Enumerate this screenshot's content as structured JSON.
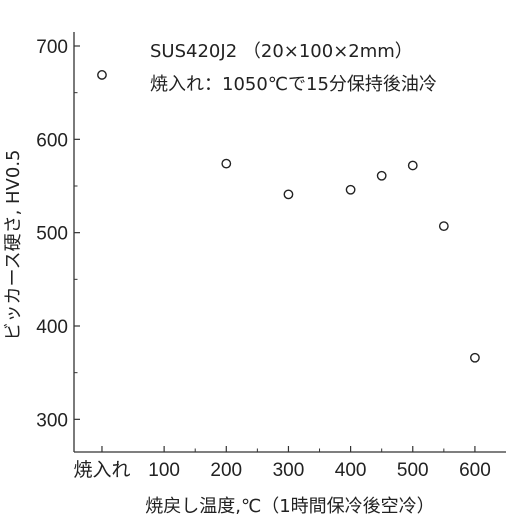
{
  "chart_data": {
    "type": "scatter",
    "title": "",
    "annotations": [
      "SUS420J2 （20×100×2mm）",
      "焼入れ：1050℃で15分保持後油冷"
    ],
    "xlabel": "焼戻し温度,℃（1時間保冷後空冷）",
    "ylabel": "ビッカース硬さ, HV0.5",
    "x_tick_labels": [
      "焼入れ",
      "100",
      "200",
      "300",
      "400",
      "500",
      "600"
    ],
    "x_tick_values": [
      0,
      100,
      200,
      300,
      400,
      500,
      600
    ],
    "y_tick_labels": [
      "300",
      "400",
      "500",
      "600",
      "700"
    ],
    "y_tick_values": [
      300,
      400,
      500,
      600,
      700
    ],
    "xlim": [
      -45,
      650
    ],
    "ylim": [
      265,
      715
    ],
    "grid": false,
    "series": [
      {
        "marker": "open-circle",
        "points": [
          {
            "x": 0,
            "y": 669
          },
          {
            "x": 200,
            "y": 574
          },
          {
            "x": 300,
            "y": 541
          },
          {
            "x": 400,
            "y": 546
          },
          {
            "x": 450,
            "y": 561
          },
          {
            "x": 500,
            "y": 572
          },
          {
            "x": 550,
            "y": 507
          },
          {
            "x": 600,
            "y": 366
          }
        ]
      }
    ],
    "colors": {
      "axis": "#333333",
      "marker": "#222222"
    }
  }
}
